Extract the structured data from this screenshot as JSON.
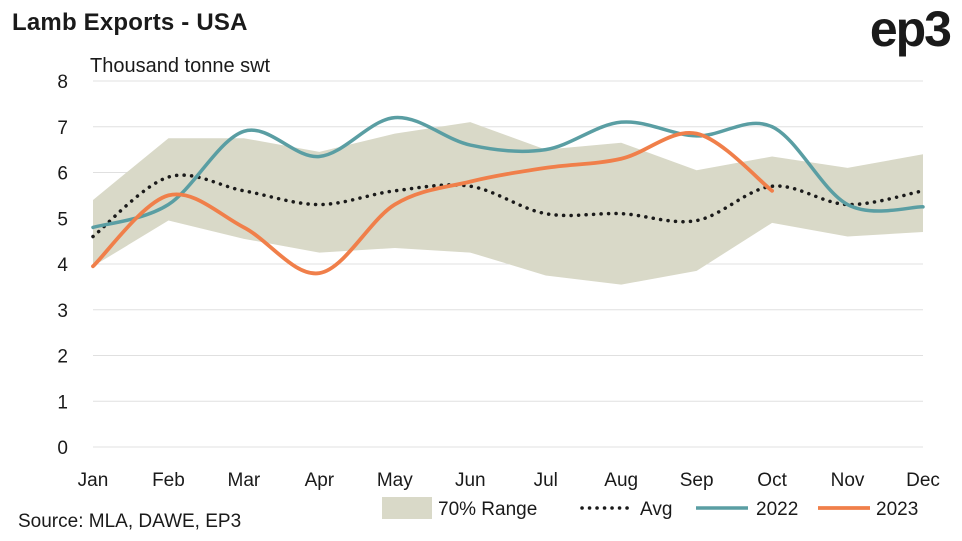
{
  "header": {
    "title": "Lamb Exports - USA",
    "logo": "ep3"
  },
  "footer": {
    "source": "Source: MLA, DAWE, EP3"
  },
  "colors": {
    "range": "#d9d9c8",
    "avg": "#1a1a1a",
    "y2022": "#5a9ea3",
    "y2023": "#f07f4a",
    "grid": "#e0e0e0"
  },
  "chart_data": {
    "type": "line",
    "ylabel": "Thousand tonne swt",
    "ylim": [
      0,
      8
    ],
    "yticks": [
      0,
      1,
      2,
      3,
      4,
      5,
      6,
      7,
      8
    ],
    "categories": [
      "Jan",
      "Feb",
      "Mar",
      "Apr",
      "May",
      "Jun",
      "Jul",
      "Aug",
      "Sep",
      "Oct",
      "Nov",
      "Dec"
    ],
    "range": {
      "name": "70% Range",
      "upper": [
        5.4,
        6.75,
        6.75,
        6.45,
        6.85,
        7.1,
        6.5,
        6.65,
        6.05,
        6.35,
        6.1,
        6.4
      ],
      "lower": [
        3.95,
        4.95,
        4.55,
        4.25,
        4.35,
        4.25,
        3.75,
        3.55,
        3.85,
        4.9,
        4.6,
        4.7
      ]
    },
    "series": [
      {
        "name": "Avg",
        "values": [
          4.6,
          5.9,
          5.6,
          5.3,
          5.6,
          5.7,
          5.1,
          5.1,
          4.95,
          5.7,
          5.3,
          5.6
        ]
      },
      {
        "name": "2022",
        "values": [
          4.8,
          5.3,
          6.9,
          6.35,
          7.2,
          6.6,
          6.5,
          7.1,
          6.8,
          7.0,
          5.3,
          5.25
        ]
      },
      {
        "name": "2023",
        "values": [
          3.95,
          5.5,
          4.8,
          3.8,
          5.3,
          5.8,
          6.1,
          6.3,
          6.85,
          5.6,
          null,
          null
        ]
      }
    ],
    "legend": {
      "placement": "bottom-right",
      "items": [
        "70% Range",
        "Avg",
        "2022",
        "2023"
      ]
    },
    "grid": true
  }
}
